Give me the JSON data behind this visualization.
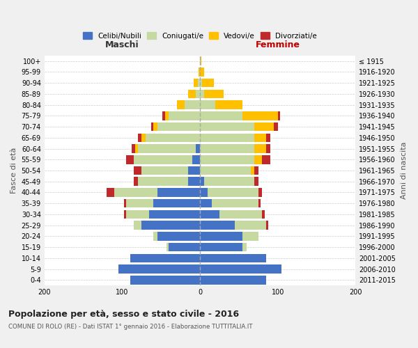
{
  "age_groups": [
    "0-4",
    "5-9",
    "10-14",
    "15-19",
    "20-24",
    "25-29",
    "30-34",
    "35-39",
    "40-44",
    "45-49",
    "50-54",
    "55-59",
    "60-64",
    "65-69",
    "70-74",
    "75-79",
    "80-84",
    "85-89",
    "90-94",
    "95-99",
    "100+"
  ],
  "birth_years": [
    "2011-2015",
    "2006-2010",
    "2001-2005",
    "1996-2000",
    "1991-1995",
    "1986-1990",
    "1981-1985",
    "1976-1980",
    "1971-1975",
    "1966-1970",
    "1961-1965",
    "1956-1960",
    "1951-1955",
    "1946-1950",
    "1941-1945",
    "1936-1940",
    "1931-1935",
    "1926-1930",
    "1921-1925",
    "1916-1920",
    "≤ 1915"
  ],
  "male": {
    "celibi": [
      90,
      105,
      90,
      40,
      55,
      75,
      65,
      60,
      55,
      15,
      15,
      10,
      5,
      0,
      0,
      0,
      0,
      0,
      0,
      0,
      0
    ],
    "coniugati": [
      0,
      0,
      0,
      3,
      5,
      10,
      30,
      35,
      55,
      65,
      60,
      75,
      75,
      70,
      55,
      40,
      20,
      5,
      3,
      0,
      0
    ],
    "vedovi": [
      0,
      0,
      0,
      0,
      0,
      0,
      0,
      0,
      0,
      0,
      0,
      0,
      3,
      5,
      5,
      5,
      10,
      10,
      5,
      2,
      0
    ],
    "divorziati": [
      0,
      0,
      0,
      0,
      0,
      0,
      3,
      3,
      10,
      5,
      10,
      10,
      5,
      5,
      3,
      3,
      0,
      0,
      0,
      0,
      0
    ]
  },
  "female": {
    "nubili": [
      85,
      105,
      85,
      55,
      55,
      45,
      25,
      15,
      10,
      5,
      0,
      0,
      0,
      0,
      0,
      0,
      0,
      0,
      0,
      0,
      0
    ],
    "coniugate": [
      0,
      0,
      0,
      5,
      20,
      40,
      55,
      60,
      65,
      65,
      65,
      70,
      70,
      70,
      70,
      55,
      20,
      5,
      3,
      0,
      0
    ],
    "vedove": [
      0,
      0,
      0,
      0,
      0,
      0,
      0,
      0,
      0,
      0,
      5,
      10,
      15,
      15,
      25,
      45,
      35,
      25,
      15,
      5,
      2
    ],
    "divorziate": [
      0,
      0,
      0,
      0,
      0,
      3,
      3,
      3,
      5,
      5,
      5,
      10,
      5,
      5,
      5,
      3,
      0,
      0,
      0,
      0,
      0
    ]
  },
  "colors": {
    "celibi": "#4472c4",
    "coniugati": "#c5d9a0",
    "vedovi": "#ffc000",
    "divorziati": "#c0292b"
  },
  "title": "Popolazione per età, sesso e stato civile - 2016",
  "subtitle": "COMUNE DI ROLO (RE) - Dati ISTAT 1° gennaio 2016 - Elaborazione TUTTITALIA.IT",
  "xlabel_left": "Maschi",
  "xlabel_right": "Femmine",
  "ylabel_left": "Fasce di età",
  "ylabel_right": "Anni di nascita",
  "xlim": 200,
  "legend_labels": [
    "Celibi/Nubili",
    "Coniugati/e",
    "Vedovi/e",
    "Divorziati/e"
  ],
  "bg_color": "#f0f0f0",
  "plot_bg_color": "#ffffff"
}
